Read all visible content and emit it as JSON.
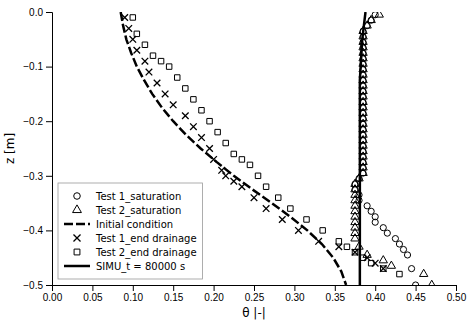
{
  "chart_data": {
    "type": "line",
    "xlabel": "θ |-|",
    "ylabel": "z [m]",
    "xlim": [
      0.0,
      0.5
    ],
    "ylim": [
      -0.5,
      0.0
    ],
    "xticks": [
      {
        "value": 0.0,
        "label": "0.00"
      },
      {
        "value": 0.05,
        "label": "0.05"
      },
      {
        "value": 0.1,
        "label": "0.10"
      },
      {
        "value": 0.15,
        "label": "0.15"
      },
      {
        "value": 0.2,
        "label": "0.20"
      },
      {
        "value": 0.25,
        "label": "0.25"
      },
      {
        "value": 0.3,
        "label": "0.30"
      },
      {
        "value": 0.35,
        "label": "0.35"
      },
      {
        "value": 0.4,
        "label": "0.40"
      },
      {
        "value": 0.45,
        "label": "0.45"
      },
      {
        "value": 0.5,
        "label": "0.50"
      }
    ],
    "yticks": [
      {
        "value": 0.0,
        "label": "0.0"
      },
      {
        "value": -0.1,
        "label": "−0.1"
      },
      {
        "value": -0.2,
        "label": "−0.2"
      },
      {
        "value": -0.3,
        "label": "−0.3"
      },
      {
        "value": -0.4,
        "label": "−0.4"
      },
      {
        "value": -0.5,
        "label": "−0.5"
      }
    ],
    "grid": false,
    "legend": "lower left",
    "series": [
      {
        "name": "Test 1_saturation",
        "type": "scatter",
        "marker": "circle",
        "color": "black",
        "x": [
          0.4,
          0.395,
          0.39,
          0.385,
          0.385,
          0.385,
          0.385,
          0.385,
          0.385,
          0.385,
          0.385,
          0.385,
          0.385,
          0.385,
          0.385,
          0.385,
          0.385,
          0.385,
          0.385,
          0.385,
          0.385,
          0.385,
          0.385,
          0.385,
          0.385,
          0.385,
          0.385,
          0.385,
          0.385,
          0.385,
          0.38,
          0.375,
          0.375,
          0.38,
          0.38,
          0.39,
          0.395,
          0.4,
          0.4,
          0.41,
          0.415,
          0.425,
          0.43,
          0.435,
          0.44,
          0.445,
          0.45
        ],
        "values": [
          -0.005,
          -0.015,
          -0.025,
          -0.035,
          -0.045,
          -0.055,
          -0.065,
          -0.075,
          -0.085,
          -0.095,
          -0.105,
          -0.115,
          -0.125,
          -0.135,
          -0.145,
          -0.155,
          -0.165,
          -0.175,
          -0.185,
          -0.195,
          -0.205,
          -0.215,
          -0.225,
          -0.235,
          -0.245,
          -0.255,
          -0.265,
          -0.275,
          -0.285,
          -0.295,
          -0.305,
          -0.315,
          -0.325,
          -0.335,
          -0.345,
          -0.355,
          -0.365,
          -0.375,
          -0.385,
          -0.395,
          -0.405,
          -0.415,
          -0.425,
          -0.435,
          -0.445,
          -0.47,
          -0.5
        ]
      },
      {
        "name": "Test 2_saturation",
        "type": "scatter",
        "marker": "triangle",
        "color": "black",
        "x": [
          0.405,
          0.395,
          0.39,
          0.385,
          0.385,
          0.385,
          0.385,
          0.385,
          0.385,
          0.385,
          0.385,
          0.385,
          0.385,
          0.385,
          0.385,
          0.385,
          0.385,
          0.385,
          0.385,
          0.385,
          0.385,
          0.385,
          0.385,
          0.385,
          0.385,
          0.385,
          0.385,
          0.385,
          0.385,
          0.385,
          0.38,
          0.375,
          0.375,
          0.375,
          0.375,
          0.375,
          0.375,
          0.375,
          0.375,
          0.375,
          0.375,
          0.375,
          0.38,
          0.39,
          0.41,
          0.42,
          0.46,
          0.47
        ],
        "values": [
          -0.005,
          -0.015,
          -0.025,
          -0.035,
          -0.045,
          -0.055,
          -0.065,
          -0.075,
          -0.085,
          -0.095,
          -0.105,
          -0.115,
          -0.125,
          -0.135,
          -0.145,
          -0.155,
          -0.165,
          -0.175,
          -0.185,
          -0.195,
          -0.205,
          -0.215,
          -0.225,
          -0.235,
          -0.245,
          -0.255,
          -0.265,
          -0.275,
          -0.285,
          -0.295,
          -0.305,
          -0.315,
          -0.325,
          -0.335,
          -0.345,
          -0.355,
          -0.365,
          -0.375,
          -0.385,
          -0.395,
          -0.405,
          -0.415,
          -0.43,
          -0.445,
          -0.455,
          -0.465,
          -0.48,
          -0.5
        ]
      },
      {
        "name": "Initial condition",
        "type": "line",
        "line_style": "dashed",
        "color": "black",
        "x": [
          0.085,
          0.088,
          0.092,
          0.098,
          0.105,
          0.114,
          0.124,
          0.136,
          0.15,
          0.166,
          0.184,
          0.204,
          0.225,
          0.248,
          0.272,
          0.295,
          0.316,
          0.334,
          0.348,
          0.358,
          0.364
        ],
        "values": [
          0.0,
          -0.025,
          -0.05,
          -0.075,
          -0.1,
          -0.125,
          -0.15,
          -0.175,
          -0.2,
          -0.225,
          -0.25,
          -0.275,
          -0.3,
          -0.325,
          -0.35,
          -0.375,
          -0.4,
          -0.425,
          -0.45,
          -0.475,
          -0.5
        ]
      },
      {
        "name": "Test 1_end drainage",
        "type": "scatter",
        "marker": "x",
        "color": "black",
        "x": [
          0.09,
          0.095,
          0.1,
          0.105,
          0.115,
          0.12,
          0.13,
          0.14,
          0.15,
          0.165,
          0.175,
          0.185,
          0.195,
          0.2,
          0.21,
          0.215,
          0.225,
          0.235,
          0.25,
          0.265,
          0.285,
          0.305,
          0.33,
          0.355,
          0.375,
          0.39,
          0.4,
          0.41
        ],
        "values": [
          -0.01,
          -0.03,
          -0.05,
          -0.07,
          -0.09,
          -0.11,
          -0.13,
          -0.15,
          -0.17,
          -0.19,
          -0.21,
          -0.23,
          -0.25,
          -0.27,
          -0.29,
          -0.3,
          -0.31,
          -0.32,
          -0.34,
          -0.36,
          -0.38,
          -0.4,
          -0.42,
          -0.43,
          -0.44,
          -0.45,
          -0.46,
          -0.47
        ]
      },
      {
        "name": "Test 2_end drainage",
        "type": "scatter",
        "marker": "square",
        "color": "black",
        "x": [
          0.1,
          0.105,
          0.115,
          0.125,
          0.135,
          0.145,
          0.155,
          0.165,
          0.175,
          0.185,
          0.195,
          0.205,
          0.215,
          0.225,
          0.235,
          0.245,
          0.255,
          0.265,
          0.28,
          0.295,
          0.315,
          0.335,
          0.355,
          0.365,
          0.375,
          0.385,
          0.395,
          0.41,
          0.43
        ],
        "values": [
          -0.01,
          -0.04,
          -0.06,
          -0.08,
          -0.09,
          -0.1,
          -0.12,
          -0.14,
          -0.16,
          -0.18,
          -0.2,
          -0.22,
          -0.24,
          -0.26,
          -0.27,
          -0.28,
          -0.3,
          -0.32,
          -0.34,
          -0.36,
          -0.38,
          -0.4,
          -0.42,
          -0.43,
          -0.44,
          -0.45,
          -0.46,
          -0.47,
          -0.48
        ]
      },
      {
        "name": "SIMU_t = 80000 s",
        "type": "line",
        "line_style": "solid",
        "color": "black",
        "x": [
          0.388,
          0.386,
          0.384,
          0.383,
          0.382,
          0.381,
          0.381,
          0.381,
          0.381,
          0.381,
          0.381,
          0.381,
          0.381,
          0.381,
          0.381,
          0.381,
          0.381,
          0.381,
          0.381,
          0.381,
          0.381
        ],
        "values": [
          0.0,
          -0.025,
          -0.05,
          -0.075,
          -0.1,
          -0.125,
          -0.15,
          -0.175,
          -0.2,
          -0.225,
          -0.25,
          -0.275,
          -0.3,
          -0.325,
          -0.35,
          -0.375,
          -0.4,
          -0.425,
          -0.45,
          -0.475,
          -0.5
        ]
      }
    ]
  }
}
